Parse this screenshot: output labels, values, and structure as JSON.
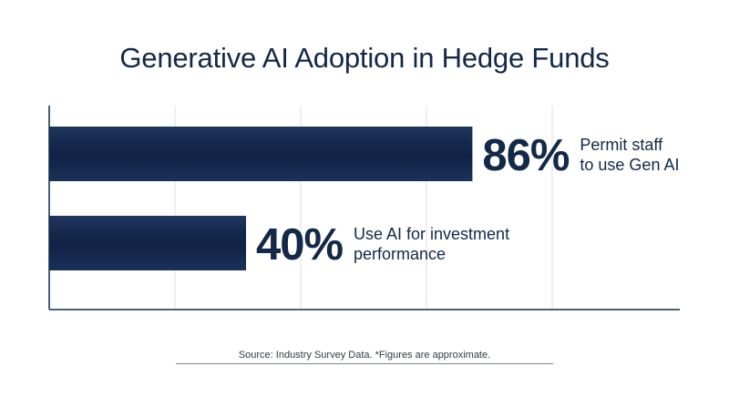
{
  "chart_data": {
    "type": "bar",
    "orientation": "horizontal",
    "title": "Generative AI Adoption in Hedge Funds",
    "categories": [
      "Permit staff to use Gen AI",
      "Use AI for investment performance"
    ],
    "values": [
      86,
      40
    ],
    "value_labels": [
      "86%",
      "40%"
    ],
    "descriptions": [
      [
        "Permit staff",
        "to use Gen AI"
      ],
      [
        "Use AI for investment",
        "performance"
      ]
    ],
    "xlim": [
      0,
      100
    ],
    "grid": true,
    "colors": {
      "bar": "#142a52",
      "text": "#142847",
      "grid": "#dcdfe4",
      "axis": "#142847"
    }
  },
  "footer": {
    "source_text": "Source: Industry Survey Data. *Figures are approximate."
  }
}
